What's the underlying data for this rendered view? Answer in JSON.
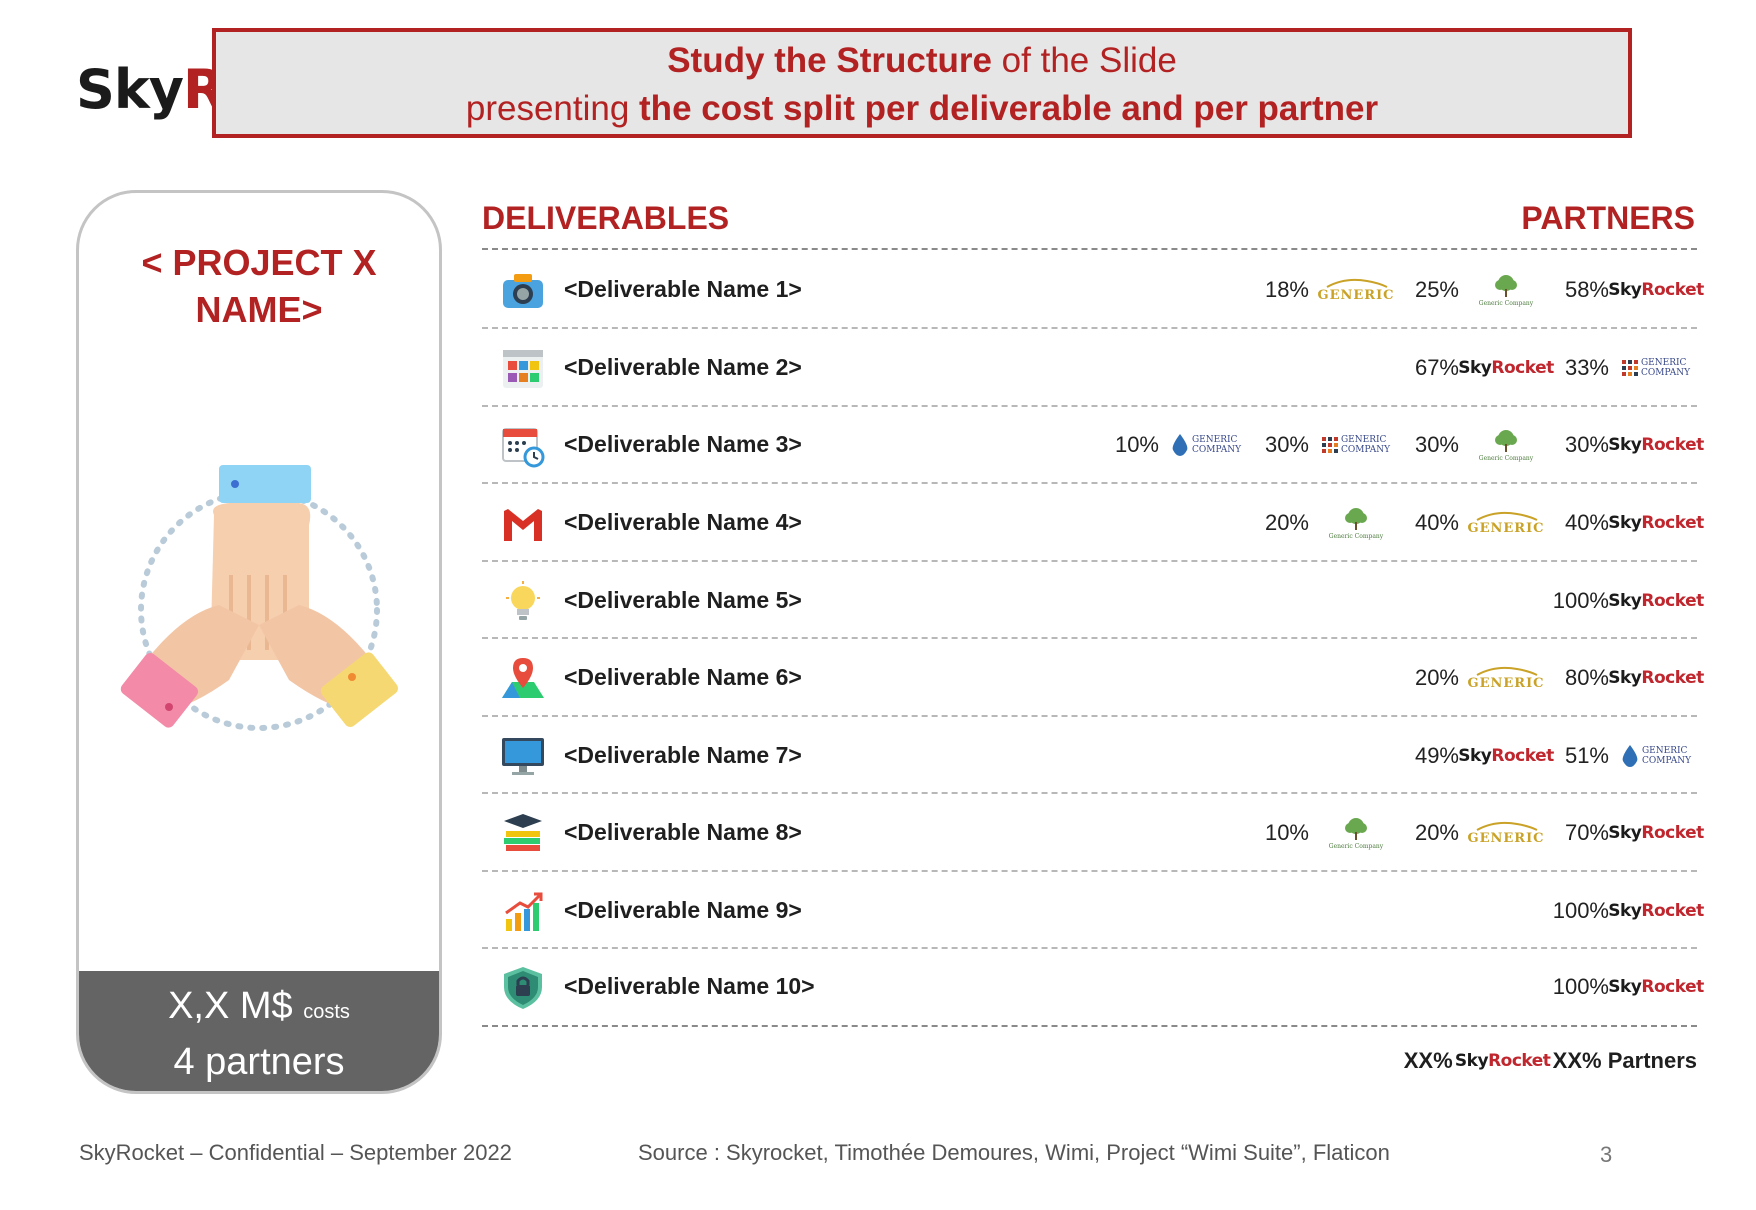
{
  "brand": {
    "text_dark": "Sky",
    "text_red": "R"
  },
  "banner": {
    "line1_bold": "Study the Structure",
    "line1_rest": " of the Slide",
    "line2_pre": "presenting ",
    "line2_bold": "the cost split per deliverable and per partner"
  },
  "card": {
    "project": "< PROJECT X NAME>",
    "costs_value": "X,X M$",
    "costs_label": "costs",
    "partners": "4 partners"
  },
  "headers": {
    "deliverables": "DELIVERABLES",
    "partners": "PARTNERS"
  },
  "logos": {
    "skyrocket": {
      "a": "Sky",
      "b": "Rocket"
    },
    "generic_car": "GENERIC",
    "generic_company": "GENERIC COMPANY",
    "generic_tree": "Generic Company"
  },
  "rows": [
    {
      "name": "<Deliverable Name 1>",
      "icon": "camera-icon",
      "splits": [
        {
          "pct": "18%",
          "logo": "generic-car"
        },
        {
          "pct": "25%",
          "logo": "generic-tree"
        },
        {
          "pct": "58%",
          "logo": "skyrocket"
        }
      ]
    },
    {
      "name": "<Deliverable Name 2>",
      "icon": "app-grid-icon",
      "splits": [
        {
          "pct": "67%",
          "logo": "skyrocket"
        },
        {
          "pct": "33%",
          "logo": "generic-company-grid"
        }
      ]
    },
    {
      "name": "<Deliverable Name 3>",
      "icon": "calendar-clock-icon",
      "splits": [
        {
          "pct": "10%",
          "logo": "generic-company-drop"
        },
        {
          "pct": "30%",
          "logo": "generic-company-grid"
        },
        {
          "pct": "30%",
          "logo": "generic-tree"
        },
        {
          "pct": "30%",
          "logo": "skyrocket"
        }
      ]
    },
    {
      "name": "<Deliverable Name 4>",
      "icon": "gmail-icon",
      "splits": [
        {
          "pct": "20%",
          "logo": "generic-tree"
        },
        {
          "pct": "40%",
          "logo": "generic-car"
        },
        {
          "pct": "40%",
          "logo": "skyrocket"
        }
      ]
    },
    {
      "name": "<Deliverable Name 5>",
      "icon": "lightbulb-icon",
      "splits": [
        {
          "pct": "100%",
          "logo": "skyrocket"
        }
      ]
    },
    {
      "name": "<Deliverable Name 6>",
      "icon": "map-pin-icon",
      "splits": [
        {
          "pct": "20%",
          "logo": "generic-car"
        },
        {
          "pct": "80%",
          "logo": "skyrocket"
        }
      ]
    },
    {
      "name": "<Deliverable Name 7>",
      "icon": "monitor-icon",
      "splits": [
        {
          "pct": "49%",
          "logo": "skyrocket"
        },
        {
          "pct": "51%",
          "logo": "generic-company-drop"
        }
      ]
    },
    {
      "name": "<Deliverable Name 8>",
      "icon": "graduation-books-icon",
      "splits": [
        {
          "pct": "10%",
          "logo": "generic-tree"
        },
        {
          "pct": "20%",
          "logo": "generic-car"
        },
        {
          "pct": "70%",
          "logo": "skyrocket"
        }
      ]
    },
    {
      "name": "<Deliverable Name 9>",
      "icon": "growth-chart-icon",
      "splits": [
        {
          "pct": "100%",
          "logo": "skyrocket"
        }
      ]
    },
    {
      "name": "<Deliverable Name 10>",
      "icon": "shield-lock-icon",
      "splits": [
        {
          "pct": "100%",
          "logo": "skyrocket"
        }
      ]
    }
  ],
  "totals": {
    "pct1": "XX%",
    "pct2": "XX%",
    "label": "Partners"
  },
  "footer": {
    "left": "SkyRocket – Confidential – September 2022",
    "source": "Source : Skyrocket, Timothée Demoures, Wimi, Project “Wimi Suite”, Flaticon",
    "page": "3"
  },
  "colors": {
    "accent": "#b22222",
    "card_footer": "#646464",
    "banner_bg": "#e6e6e6"
  }
}
